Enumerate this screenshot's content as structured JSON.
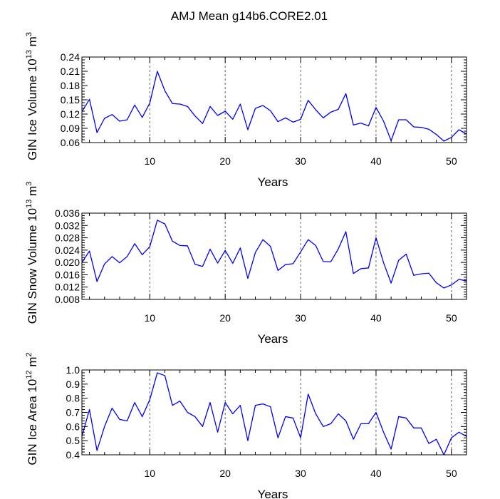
{
  "title": "AMJ Mean g14b6.CORE2.01",
  "colors": {
    "series": "#0000ff",
    "axis": "#000000",
    "grid": "#555555"
  },
  "chart_data": [
    {
      "type": "line",
      "ylabel": "GIN Ice Volume 10^13 m^3",
      "ylabel_main": "GIN Ice Volume 10",
      "ylabel_exp": "13",
      "ylabel_unit": "m",
      "ylabel_unit_exp": "3",
      "xlabel": "Years",
      "xlim": [
        1,
        52
      ],
      "ylim": [
        0.06,
        0.24
      ],
      "xticks": [
        10,
        20,
        30,
        40,
        50
      ],
      "yticks": [
        0.06,
        0.09,
        0.12,
        0.15,
        0.18,
        0.21,
        0.24
      ],
      "ytick_labels": [
        "0.06",
        "0.09",
        "0.12",
        "0.15",
        "0.18",
        "0.21",
        "0.24"
      ],
      "grid_x": [
        10,
        20,
        30,
        40,
        50
      ],
      "x": [
        1,
        2,
        3,
        4,
        5,
        6,
        7,
        8,
        9,
        10,
        11,
        12,
        13,
        14,
        15,
        16,
        17,
        18,
        19,
        20,
        21,
        22,
        23,
        24,
        25,
        26,
        27,
        28,
        29,
        30,
        31,
        32,
        33,
        34,
        35,
        36,
        37,
        38,
        39,
        40,
        41,
        42,
        43,
        44,
        45,
        46,
        47,
        48,
        49,
        50,
        51,
        52
      ],
      "values": [
        0.125,
        0.151,
        0.081,
        0.111,
        0.119,
        0.105,
        0.108,
        0.139,
        0.113,
        0.143,
        0.21,
        0.169,
        0.142,
        0.141,
        0.136,
        0.116,
        0.1,
        0.136,
        0.117,
        0.126,
        0.109,
        0.141,
        0.087,
        0.132,
        0.138,
        0.127,
        0.104,
        0.112,
        0.103,
        0.109,
        0.149,
        0.129,
        0.112,
        0.124,
        0.13,
        0.163,
        0.097,
        0.101,
        0.095,
        0.134,
        0.105,
        0.064,
        0.108,
        0.108,
        0.093,
        0.092,
        0.088,
        0.077,
        0.063,
        0.071,
        0.087,
        0.078
      ]
    },
    {
      "type": "line",
      "ylabel": "GIN Snow Volume 10^13 m^3",
      "ylabel_main": "GIN Snow Volume 10",
      "ylabel_exp": "13",
      "ylabel_unit": "m",
      "ylabel_unit_exp": "3",
      "xlabel": "Years",
      "xlim": [
        1,
        52
      ],
      "ylim": [
        0.008,
        0.036
      ],
      "xticks": [
        10,
        20,
        30,
        40,
        50
      ],
      "yticks": [
        0.008,
        0.012,
        0.016,
        0.02,
        0.024,
        0.028,
        0.032,
        0.036
      ],
      "ytick_labels": [
        "0.008",
        "0.012",
        "0.016",
        "0.020",
        "0.024",
        "0.028",
        "0.032",
        "0.036"
      ],
      "grid_x": [
        10,
        20,
        30,
        40,
        50
      ],
      "x": [
        1,
        2,
        3,
        4,
        5,
        6,
        7,
        8,
        9,
        10,
        11,
        12,
        13,
        14,
        15,
        16,
        17,
        18,
        19,
        20,
        21,
        22,
        23,
        24,
        25,
        26,
        27,
        28,
        29,
        30,
        31,
        32,
        33,
        34,
        35,
        36,
        37,
        38,
        39,
        40,
        41,
        42,
        43,
        44,
        45,
        46,
        47,
        48,
        49,
        50,
        51,
        52
      ],
      "values": [
        0.02,
        0.0237,
        0.0138,
        0.0195,
        0.0219,
        0.0199,
        0.0219,
        0.0261,
        0.0225,
        0.0251,
        0.0337,
        0.0325,
        0.0269,
        0.0255,
        0.0254,
        0.0194,
        0.0187,
        0.0243,
        0.0198,
        0.0239,
        0.0197,
        0.0247,
        0.0148,
        0.0232,
        0.0274,
        0.0252,
        0.0174,
        0.0193,
        0.0196,
        0.0234,
        0.0274,
        0.0255,
        0.0203,
        0.0202,
        0.0244,
        0.03,
        0.0164,
        0.018,
        0.0182,
        0.028,
        0.0199,
        0.0133,
        0.0207,
        0.0227,
        0.0158,
        0.0163,
        0.0165,
        0.0134,
        0.0117,
        0.0127,
        0.0145,
        0.014
      ]
    },
    {
      "type": "line",
      "ylabel": "GIN Ice Area 10^12 m^2",
      "ylabel_main": "GIN Ice Area 10",
      "ylabel_exp": "12",
      "ylabel_unit": "m",
      "ylabel_unit_exp": "2",
      "xlabel": "Years",
      "xlim": [
        1,
        52
      ],
      "ylim": [
        0.4,
        1.0
      ],
      "xticks": [
        10,
        20,
        30,
        40,
        50
      ],
      "yticks": [
        0.4,
        0.5,
        0.6,
        0.7,
        0.8,
        0.9,
        1.0
      ],
      "ytick_labels": [
        "0.4",
        "0.5",
        "0.6",
        "0.7",
        "0.8",
        "0.9",
        "1.0"
      ],
      "grid_x": [
        10,
        20,
        30,
        40,
        50
      ],
      "x": [
        1,
        2,
        3,
        4,
        5,
        6,
        7,
        8,
        9,
        10,
        11,
        12,
        13,
        14,
        15,
        16,
        17,
        18,
        19,
        20,
        21,
        22,
        23,
        24,
        25,
        26,
        27,
        28,
        29,
        30,
        31,
        32,
        33,
        34,
        35,
        36,
        37,
        38,
        39,
        40,
        41,
        42,
        43,
        44,
        45,
        46,
        47,
        48,
        49,
        50,
        51,
        52
      ],
      "values": [
        0.53,
        0.72,
        0.43,
        0.6,
        0.73,
        0.65,
        0.64,
        0.77,
        0.67,
        0.79,
        0.98,
        0.96,
        0.75,
        0.78,
        0.7,
        0.67,
        0.6,
        0.77,
        0.56,
        0.77,
        0.69,
        0.75,
        0.5,
        0.75,
        0.76,
        0.74,
        0.52,
        0.67,
        0.66,
        0.52,
        0.83,
        0.69,
        0.6,
        0.62,
        0.69,
        0.64,
        0.51,
        0.62,
        0.62,
        0.7,
        0.56,
        0.44,
        0.67,
        0.66,
        0.59,
        0.59,
        0.48,
        0.51,
        0.4,
        0.52,
        0.56,
        0.53
      ]
    }
  ]
}
